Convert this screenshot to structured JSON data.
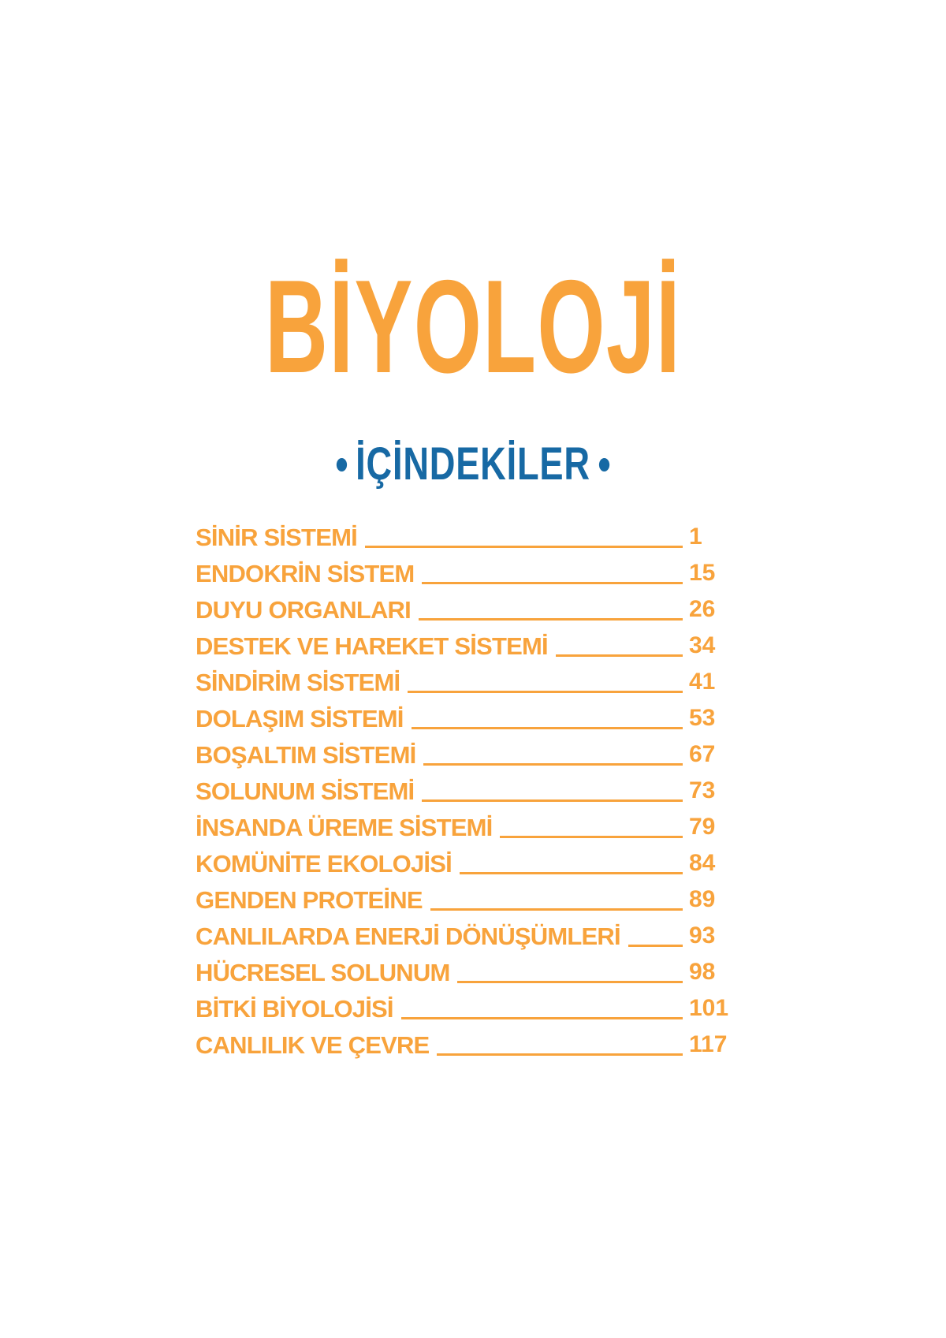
{
  "page": {
    "title": "BİYOLOJİ",
    "contents_heading": "İÇİNDEKİLER"
  },
  "colors": {
    "orange": "#F8A33C",
    "blue": "#1769A4",
    "background": "#FFFFFF"
  },
  "toc": {
    "entries": [
      {
        "label": "SİNİR SİSTEMİ",
        "page": "1"
      },
      {
        "label": "ENDOKRİN SİSTEM",
        "page": "15"
      },
      {
        "label": "DUYU ORGANLARI",
        "page": "26"
      },
      {
        "label": "DESTEK VE HAREKET SİSTEMİ",
        "page": "34"
      },
      {
        "label": "SİNDİRİM SİSTEMİ",
        "page": "41"
      },
      {
        "label": "DOLAŞIM SİSTEMİ",
        "page": "53"
      },
      {
        "label": "BOŞALTIM SİSTEMİ",
        "page": "67"
      },
      {
        "label": "SOLUNUM SİSTEMİ",
        "page": "73"
      },
      {
        "label": "İNSANDA ÜREME SİSTEMİ",
        "page": "79"
      },
      {
        "label": "KOMÜNİTE EKOLOJİSİ",
        "page": "84"
      },
      {
        "label": "GENDEN PROTEİNE",
        "page": "89"
      },
      {
        "label": "CANLILARDA ENERJİ DÖNÜŞÜMLERİ",
        "page": "93"
      },
      {
        "label": "HÜCRESEL SOLUNUM",
        "page": "98"
      },
      {
        "label": "BİTKİ BİYOLOJİSİ",
        "page": "101"
      },
      {
        "label": "CANLILIK VE ÇEVRE",
        "page": "117"
      }
    ]
  }
}
